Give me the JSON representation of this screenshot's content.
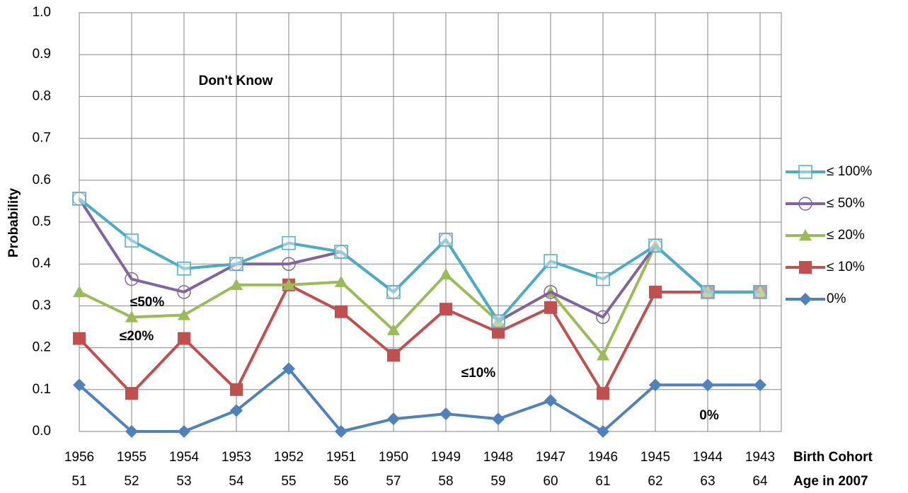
{
  "chart_data": {
    "type": "line",
    "y_label": "Probability",
    "categories": [
      "1956",
      "1955",
      "1954",
      "1953",
      "1952",
      "1951",
      "1950",
      "1949",
      "1948",
      "1947",
      "1946",
      "1945",
      "1944",
      "1943"
    ],
    "ages": [
      "51",
      "52",
      "53",
      "54",
      "55",
      "56",
      "57",
      "58",
      "59",
      "60",
      "61",
      "62",
      "63",
      "64"
    ],
    "x_row_titles": [
      "Birth Cohort",
      "Age in 2007"
    ],
    "ylim": [
      0,
      1
    ],
    "yticks": [
      {
        "value": 0,
        "label": "0.0"
      },
      0.1,
      0.2,
      0.3,
      0.4,
      0.5,
      0.6,
      0.7,
      0.8,
      0.9,
      {
        "value": 1,
        "label": "1.0"
      }
    ],
    "grid": true,
    "legend": "right",
    "annotations": [
      "Don't Know",
      "≤50%",
      "≤20%",
      "≤10%",
      "0%"
    ],
    "series": [
      {
        "name": "≤ 100%",
        "color": "#4bacc6",
        "marker": "square-open",
        "values": [
          0.556,
          0.456,
          0.389,
          0.4,
          0.45,
          0.429,
          0.333,
          0.458,
          0.263,
          0.407,
          0.364,
          0.444,
          0.333,
          0.333
        ]
      },
      {
        "name": "≤ 50%",
        "color": "#8064a2",
        "marker": "circle-open",
        "values": [
          0.556,
          0.364,
          0.333,
          0.4,
          0.4,
          0.429,
          0.333,
          0.458,
          0.263,
          0.333,
          0.273,
          0.444,
          0.333,
          0.333
        ]
      },
      {
        "name": "≤ 20%",
        "color": "#9bbb59",
        "marker": "triangle",
        "values": [
          0.333,
          0.273,
          0.278,
          0.35,
          0.35,
          0.357,
          0.242,
          0.375,
          0.263,
          0.333,
          0.182,
          0.444,
          0.333,
          0.333
        ]
      },
      {
        "name": "≤ 10%",
        "color": "#c0504d",
        "marker": "square",
        "values": [
          0.222,
          0.091,
          0.222,
          0.1,
          0.35,
          0.286,
          0.182,
          0.292,
          0.237,
          0.296,
          0.091,
          0.333,
          0.333,
          0.333
        ]
      },
      {
        "name": "0%",
        "color": "#4f81bd",
        "marker": "diamond",
        "values": [
          0.111,
          0,
          0,
          0.05,
          0.15,
          0,
          0.03,
          0.042,
          0.03,
          0.074,
          0,
          0.111,
          0.111,
          0.111
        ]
      }
    ]
  }
}
